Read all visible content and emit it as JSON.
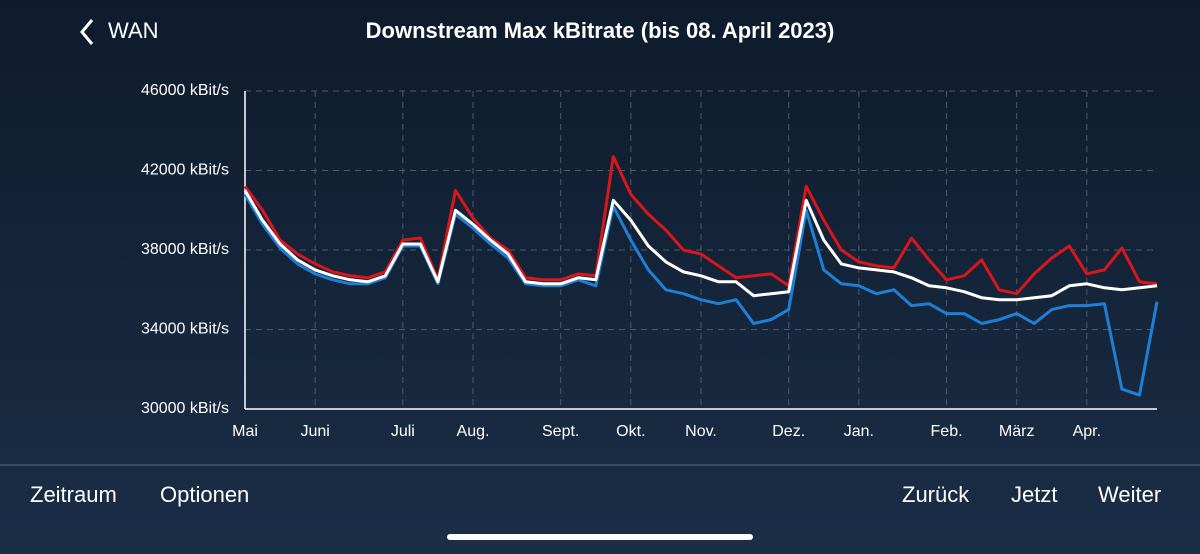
{
  "nav": {
    "back": "WAN"
  },
  "toolbar": {
    "left": [
      "Zeitraum",
      "Optionen"
    ],
    "right": [
      "Zurück",
      "Jetzt",
      "Weiter"
    ]
  },
  "chart_data": {
    "type": "line",
    "title": "Downstream Max kBitrate (bis 08. April 2023)",
    "categories": [
      "Mai",
      null,
      null,
      null,
      "Juni",
      null,
      null,
      null,
      null,
      "Juli",
      null,
      null,
      null,
      "Aug.",
      null,
      null,
      null,
      null,
      "Sept.",
      null,
      null,
      null,
      "Okt.",
      null,
      null,
      null,
      "Nov.",
      null,
      null,
      null,
      null,
      "Dez.",
      null,
      null,
      null,
      "Jan.",
      null,
      null,
      null,
      null,
      "Feb.",
      null,
      null,
      null,
      "März",
      null,
      null,
      null,
      "Apr.",
      null,
      null,
      null,
      null
    ],
    "series": [
      {
        "color": "#d8161b",
        "values": [
          41200,
          40000,
          38500,
          37800,
          37300,
          36900,
          36700,
          36600,
          36900,
          38500,
          38600,
          36500,
          41000,
          39600,
          38600,
          38000,
          36600,
          36500,
          36500,
          36800,
          36700,
          42700,
          40800,
          39800,
          39000,
          38000,
          37800,
          37200,
          36600,
          36700,
          36800,
          36200,
          41200,
          39500,
          38000,
          37400,
          37200,
          37100,
          38600,
          37500,
          36500,
          36700,
          37500,
          36000,
          35800,
          36800,
          37600,
          38200,
          36800,
          37000,
          38100,
          36400,
          36300
        ]
      },
      {
        "color": "#1f7fd6",
        "values": [
          40800,
          39300,
          38100,
          37300,
          36800,
          36500,
          36300,
          36300,
          36600,
          38200,
          38200,
          36300,
          39800,
          39100,
          38300,
          37600,
          36300,
          36200,
          36200,
          36500,
          36200,
          40200,
          38500,
          37000,
          36000,
          35800,
          35500,
          35300,
          35500,
          34300,
          34500,
          35000,
          40000,
          37000,
          36300,
          36200,
          35800,
          36000,
          35200,
          35300,
          34800,
          34800,
          34300,
          34500,
          34800,
          34300,
          35000,
          35200,
          35200,
          35300,
          31000,
          30700,
          35400
        ]
      },
      {
        "color": "#ffffff",
        "values": [
          41000,
          39500,
          38300,
          37500,
          37000,
          36700,
          36500,
          36400,
          36700,
          38300,
          38300,
          36400,
          40000,
          39300,
          38500,
          37800,
          36400,
          36300,
          36300,
          36600,
          36500,
          40500,
          39500,
          38200,
          37400,
          36900,
          36700,
          36400,
          36400,
          35700,
          35800,
          35900,
          40500,
          38500,
          37300,
          37100,
          37000,
          36900,
          36600,
          36200,
          36100,
          35900,
          35600,
          35500,
          35500,
          35600,
          35700,
          36200,
          36300,
          36100,
          36000,
          36100,
          36200
        ]
      }
    ],
    "ylim": [
      30000,
      46000
    ],
    "yticks": [
      {
        "value": 30000,
        "label": "30000 kBit/s"
      },
      {
        "value": 34000,
        "label": "34000 kBit/s"
      },
      {
        "value": 38000,
        "label": "38000 kBit/s"
      },
      {
        "value": 42000,
        "label": "42000 kBit/s"
      },
      {
        "value": 46000,
        "label": "46000 kBit/s"
      }
    ],
    "grid": true
  }
}
